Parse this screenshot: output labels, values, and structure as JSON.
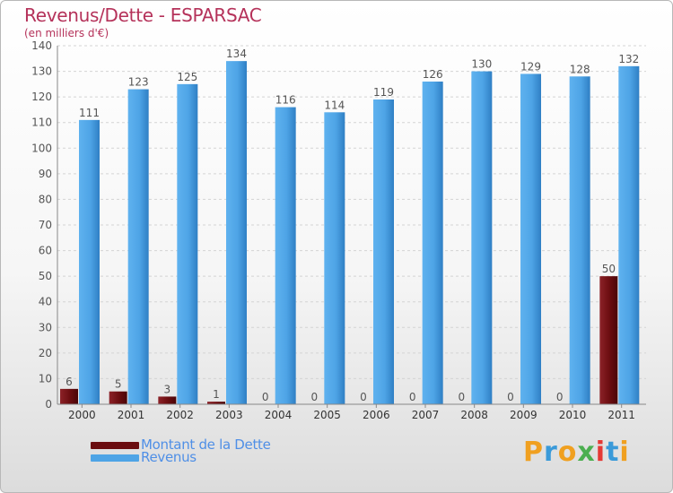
{
  "title": "Revenus/Dette - ESPARSAC",
  "subtitle": "(en milliers d'€)",
  "colors": {
    "dette": "#6b0d10",
    "revenus": "#4ea4e6",
    "title": "#b5325a",
    "legend_text": "#4f8fe6"
  },
  "legend": {
    "dette_label": "Montant de la Dette",
    "revenus_label": "Revenus"
  },
  "logo": {
    "text": "Proxiti",
    "colors": [
      "#f0a020",
      "#3a9ad9",
      "#f0a020",
      "#4caf50",
      "#e53935",
      "#3a9ad9",
      "#f0a020"
    ]
  },
  "chart_data": {
    "type": "bar",
    "title": "Revenus/Dette - ESPARSAC",
    "ylim": [
      0,
      140
    ],
    "yticks": [
      0,
      10,
      20,
      30,
      40,
      50,
      60,
      70,
      80,
      90,
      100,
      110,
      120,
      130,
      140
    ],
    "grid": true,
    "legend_position": "bottom-left",
    "categories": [
      "2000",
      "2001",
      "2002",
      "2003",
      "2004",
      "2005",
      "2006",
      "2007",
      "2008",
      "2009",
      "2010",
      "2011"
    ],
    "series": [
      {
        "name": "Montant de la Dette",
        "values": [
          6,
          5,
          3,
          1,
          0,
          0,
          0,
          0,
          0,
          0,
          0,
          50
        ]
      },
      {
        "name": "Revenus",
        "values": [
          111,
          123,
          125,
          134,
          116,
          114,
          119,
          126,
          130,
          129,
          128,
          132
        ]
      }
    ]
  }
}
